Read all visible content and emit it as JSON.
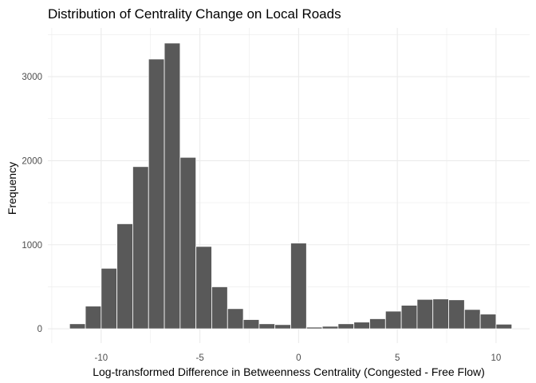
{
  "chart_data": {
    "type": "bar",
    "subtype": "histogram",
    "title": "Distribution of Centrality Change on Local Roads",
    "xlabel": "Log-transformed Difference in Betweenness Centrality (Congested - Free Flow)",
    "ylabel": "Frequency",
    "xlim": [
      -12.7,
      11.7
    ],
    "ylim": [
      -170,
      3580
    ],
    "x_ticks": [
      -10,
      -5,
      0,
      5,
      10
    ],
    "x_tick_labels": [
      "-10",
      "-5",
      "0",
      "5",
      "10"
    ],
    "y_ticks": [
      0,
      1000,
      2000,
      3000
    ],
    "y_tick_labels": [
      "0",
      "1000",
      "2000",
      "3000"
    ],
    "bin_width": 0.8,
    "bin_centers": [
      -11.2,
      -10.4,
      -9.6,
      -8.8,
      -8.0,
      -7.2,
      -6.4,
      -5.6,
      -4.8,
      -4.0,
      -3.2,
      -2.4,
      -1.6,
      -0.8,
      0.0,
      0.8,
      1.6,
      2.4,
      3.2,
      4.0,
      4.8,
      5.6,
      6.4,
      7.2,
      8.0,
      8.8,
      9.6,
      10.4
    ],
    "values": [
      60,
      270,
      720,
      1250,
      1930,
      3210,
      3400,
      2040,
      980,
      500,
      240,
      110,
      60,
      50,
      1020,
      20,
      30,
      60,
      80,
      120,
      210,
      280,
      350,
      355,
      345,
      230,
      175,
      55
    ],
    "bar_color": "#595959",
    "bar_outline": "#ffffff",
    "grid": true,
    "grid_color": "#ebebeb",
    "theme": "minimal",
    "legend": "none"
  }
}
